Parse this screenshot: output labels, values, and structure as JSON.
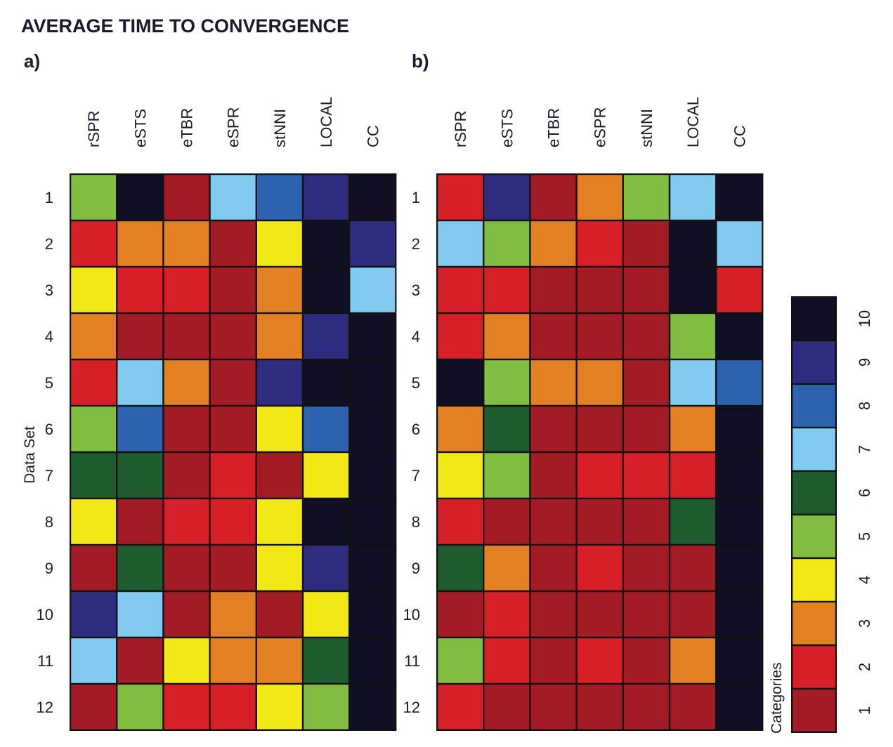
{
  "chart_data": {
    "type": "heatmap",
    "title": "AVERAGE TIME TO CONVERGENCE",
    "ylabel": "Data Set",
    "legend_title": "Categories",
    "legend_placement": "right",
    "categories": [
      "1",
      "2",
      "3",
      "4",
      "5",
      "6",
      "7",
      "8",
      "9",
      "10"
    ],
    "category_colors": [
      "#a31b25",
      "#d61f27",
      "#e48024",
      "#f1e815",
      "#80bd41",
      "#1e5b2f",
      "#82caf0",
      "#2c62ae",
      "#2e2c7e",
      "#110f24"
    ],
    "columns": [
      "rSPR",
      "eSTS",
      "eTBR",
      "eSPR",
      "stNNI",
      "LOCAL",
      "CC"
    ],
    "rows": [
      "1",
      "2",
      "3",
      "4",
      "5",
      "6",
      "7",
      "8",
      "9",
      "10",
      "11",
      "12"
    ],
    "panels": [
      {
        "label": "a)",
        "values": [
          [
            5,
            10,
            1,
            7,
            8,
            9,
            10
          ],
          [
            2,
            3,
            3,
            1,
            4,
            10,
            9
          ],
          [
            4,
            2,
            2,
            1,
            3,
            10,
            7
          ],
          [
            3,
            1,
            1,
            1,
            3,
            9,
            10
          ],
          [
            2,
            7,
            3,
            1,
            9,
            10,
            10
          ],
          [
            5,
            8,
            1,
            1,
            4,
            8,
            10
          ],
          [
            6,
            6,
            1,
            2,
            1,
            4,
            10
          ],
          [
            4,
            1,
            2,
            2,
            4,
            10,
            10
          ],
          [
            1,
            6,
            1,
            1,
            4,
            9,
            10
          ],
          [
            9,
            7,
            1,
            3,
            1,
            4,
            10
          ],
          [
            7,
            1,
            4,
            3,
            3,
            6,
            10
          ],
          [
            1,
            5,
            2,
            2,
            4,
            5,
            10
          ]
        ]
      },
      {
        "label": "b)",
        "values": [
          [
            2,
            9,
            1,
            3,
            5,
            7,
            10
          ],
          [
            7,
            5,
            3,
            2,
            1,
            10,
            7
          ],
          [
            2,
            2,
            1,
            1,
            1,
            10,
            2
          ],
          [
            2,
            3,
            1,
            1,
            1,
            5,
            10
          ],
          [
            10,
            5,
            3,
            3,
            1,
            7,
            8
          ],
          [
            3,
            6,
            1,
            1,
            1,
            3,
            10
          ],
          [
            4,
            5,
            1,
            2,
            2,
            2,
            10
          ],
          [
            2,
            1,
            1,
            1,
            1,
            6,
            10
          ],
          [
            6,
            3,
            1,
            2,
            1,
            1,
            10
          ],
          [
            1,
            2,
            1,
            1,
            1,
            1,
            10
          ],
          [
            5,
            2,
            1,
            2,
            1,
            3,
            10
          ],
          [
            2,
            1,
            1,
            1,
            1,
            1,
            10
          ]
        ]
      }
    ]
  }
}
